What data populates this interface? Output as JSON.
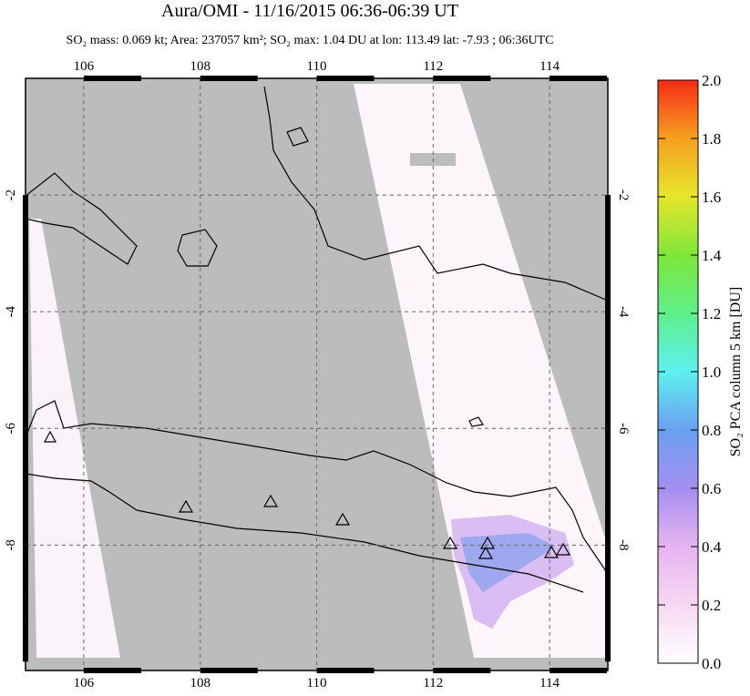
{
  "map": {
    "title": "Aura/OMI - 11/16/2015 06:36-06:39 UT",
    "subtitle": "SO₂ mass: 0.069 kt; Area: 237057 km²; SO₂ max: 1.04 DU at lon: 113.49 lat: -7.93 ; 06:36UTC",
    "xlim": [
      105,
      115
    ],
    "ylim": [
      -10.15,
      0
    ],
    "xticks": [
      106,
      108,
      110,
      112,
      114
    ],
    "yticks": [
      -2,
      -4,
      -6,
      -8
    ],
    "colorbar": {
      "label": "SO₂ PCA column 5 km [DU]",
      "lim": [
        0,
        2
      ],
      "ticks": [
        {
          "value": 0,
          "label": "0.0"
        },
        0.2,
        0.4,
        0.6,
        0.8,
        {
          "value": 1,
          "label": "1.0"
        },
        1.2,
        1.4,
        1.6,
        1.8,
        {
          "value": 2,
          "label": "2.0"
        }
      ]
    }
  }
}
